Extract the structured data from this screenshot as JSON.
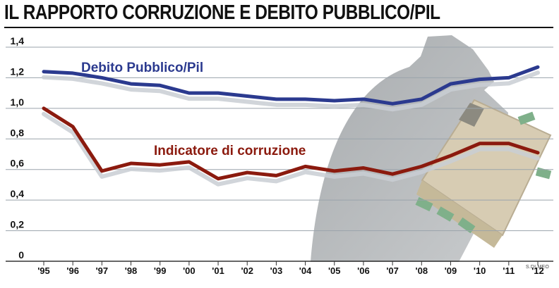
{
  "title": "IL RAPPORTO CORRUZIONE E DEBITO PUBBLICO/PIL",
  "credit": "S.DI MEO",
  "colors": {
    "debt": "#2b3a8f",
    "corruption": "#8b1a0e",
    "shadow": "#c9ced3",
    "grid": "#9aa3ab",
    "illustration": "#a9acae"
  },
  "icons": [
    "spy-silhouette-icon",
    "briefcase-with-money-icon"
  ],
  "chart_data": {
    "type": "line",
    "title": "IL RAPPORTO CORRUZIONE E DEBITO PUBBLICO/PIL",
    "categories": [
      "'95",
      "'96",
      "'97",
      "'98",
      "'99",
      "'00",
      "'01",
      "'02",
      "'03",
      "'04",
      "'05",
      "'06",
      "'07",
      "'08",
      "'09",
      "'10",
      "'11",
      "'12"
    ],
    "y_ticks": [
      "0",
      "0,2",
      "0,4",
      "0,6",
      "0,8",
      "1,0",
      "1,2",
      "1,4"
    ],
    "ylim": [
      0,
      1.4
    ],
    "grid": true,
    "series": [
      {
        "name": "Debito Pubblico/Pil",
        "values": [
          1.24,
          1.23,
          1.2,
          1.16,
          1.15,
          1.1,
          1.1,
          1.08,
          1.06,
          1.06,
          1.05,
          1.06,
          1.03,
          1.06,
          1.16,
          1.19,
          1.2,
          1.27
        ]
      },
      {
        "name": "Indicatore di corruzione",
        "values": [
          1.0,
          0.88,
          0.59,
          0.64,
          0.63,
          0.65,
          0.54,
          0.58,
          0.56,
          0.62,
          0.59,
          0.61,
          0.57,
          0.62,
          0.69,
          0.77,
          0.77,
          0.71
        ]
      }
    ]
  }
}
